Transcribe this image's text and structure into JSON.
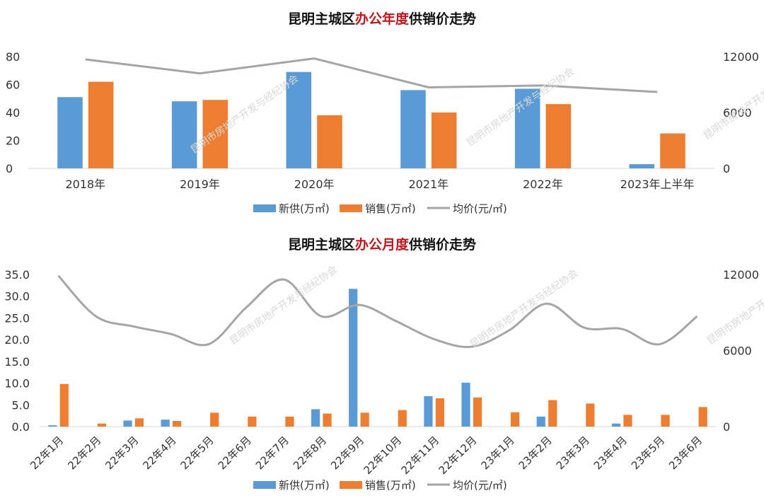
{
  "watermark_text": "昆明市房地产开发与经纪协会",
  "colors": {
    "supply": "#5b9bd5",
    "sales": "#ed7d31",
    "price": "#a5a5a5",
    "highlight": "#c0161c"
  },
  "chart_data": [
    {
      "type": "bar",
      "title_pre": "昆明主城区",
      "title_hl": "办公年度",
      "title_post": "供销价走势",
      "categories": [
        "2018年",
        "2019年",
        "2020年",
        "2021年",
        "2022年",
        "2023年上半年"
      ],
      "series": [
        {
          "name": "新供(万㎡)",
          "kind": "bar",
          "axis": "left",
          "values": [
            51,
            48,
            69,
            56,
            57,
            3
          ]
        },
        {
          "name": "销售(万㎡)",
          "kind": "bar",
          "axis": "left",
          "values": [
            62,
            49,
            38,
            40,
            46,
            25
          ]
        },
        {
          "name": "均价(元/㎡)",
          "kind": "line",
          "axis": "right",
          "values": [
            11700,
            10200,
            11800,
            8700,
            8900,
            8200
          ]
        }
      ],
      "ylim_left": [
        0,
        80
      ],
      "yticks_left": [
        "0",
        "20",
        "40",
        "60",
        "80"
      ],
      "ylim_right": [
        0,
        12000
      ],
      "yticks_right": [
        "0",
        "6000",
        "12000"
      ],
      "legend": "bottom"
    },
    {
      "type": "bar",
      "title_pre": "昆明主城区",
      "title_hl": "办公月度",
      "title_post": "供销价走势",
      "categories": [
        "22年1月",
        "22年2月",
        "22年3月",
        "22年4月",
        "22年5月",
        "22年6月",
        "22年7月",
        "22年8月",
        "22年9月",
        "22年10月",
        "22年11月",
        "22年12月",
        "23年1月",
        "23年2月",
        "23年3月",
        "23年4月",
        "23年5月",
        "23年6月"
      ],
      "series": [
        {
          "name": "新供(万㎡)",
          "kind": "bar",
          "axis": "left",
          "values": [
            0.3,
            0,
            1.4,
            1.6,
            0,
            0,
            0,
            4.0,
            31.7,
            0,
            7.0,
            10.1,
            0,
            2.3,
            0,
            0.7,
            0,
            0
          ]
        },
        {
          "name": "销售(万㎡)",
          "kind": "bar",
          "axis": "left",
          "values": [
            9.8,
            0.7,
            1.9,
            1.3,
            3.2,
            2.3,
            2.3,
            3.0,
            3.2,
            3.8,
            6.5,
            6.7,
            3.3,
            6.1,
            5.3,
            2.7,
            2.7,
            4.5
          ]
        },
        {
          "name": "均价(元/㎡)",
          "kind": "line",
          "axis": "right",
          "values": [
            11900,
            8700,
            7900,
            7300,
            6500,
            9400,
            11600,
            8700,
            9600,
            8300,
            6900,
            6300,
            7600,
            9700,
            7800,
            7700,
            6500,
            8700
          ]
        }
      ],
      "ylim_left": [
        0,
        35
      ],
      "yticks_left": [
        "0.0",
        "5.0",
        "10.0",
        "15.0",
        "20.0",
        "25.0",
        "30.0",
        "35.0"
      ],
      "ylim_right": [
        0,
        12000
      ],
      "yticks_right": [
        "0",
        "6000",
        "12000"
      ],
      "legend": "bottom"
    }
  ]
}
